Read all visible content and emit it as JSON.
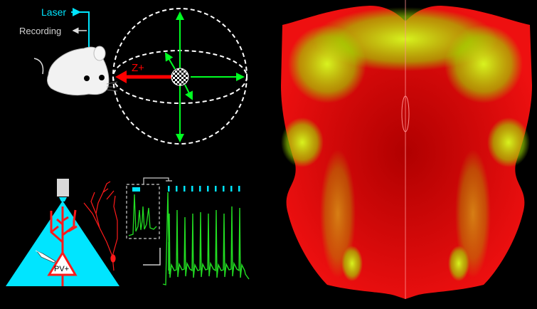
{
  "labels": {
    "laser": "Laser",
    "recording": "Recording",
    "axis": "Z+",
    "cell_type": "PV+"
  },
  "colors": {
    "laser": "#00e5ff",
    "recording": "#d8d8d8",
    "axis_arrow": "#ff0000",
    "motion_arrows": "#00ff22",
    "trace": "#22dd22",
    "neuron": "#ff1a1a",
    "light_cone": "#00e5ff",
    "brain_background": "#e00000",
    "brain_label": "#c8ff00"
  },
  "icons": {
    "mouse": "mouse-illustration",
    "sphere": "dashed-sphere",
    "microscope": "objective-icon",
    "pipette": "pipette-icon"
  }
}
